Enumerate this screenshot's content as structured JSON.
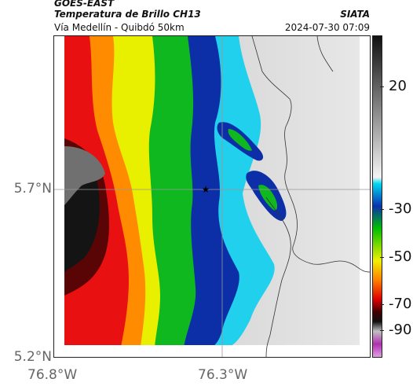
{
  "header": {
    "satellite": "GOES-EAST",
    "product": "Temperatura de Brillo CH13",
    "region": "Vía Medellín - Quibdó 50km",
    "org": "SIATA",
    "datetime": "2024-07-30 07:09"
  },
  "axes": {
    "lat_ticks": [
      "5.7°N",
      "5.2°N"
    ],
    "lon_ticks": [
      "76.8°W",
      "76.3°W"
    ]
  },
  "colorbar": {
    "ticks": [
      "20",
      "-30",
      "-50",
      "-70",
      "-90"
    ],
    "colors": {
      "warm_gray": "#d0d0d0",
      "cyan": "#00d8f0",
      "blue": "#0a30b0",
      "green": "#00c000",
      "yellow": "#f0f000",
      "orange": "#ff8000",
      "red": "#e00000",
      "dark_red": "#600000",
      "black": "#101010",
      "magenta": "#b030b0"
    }
  },
  "map": {
    "marker": "★"
  }
}
